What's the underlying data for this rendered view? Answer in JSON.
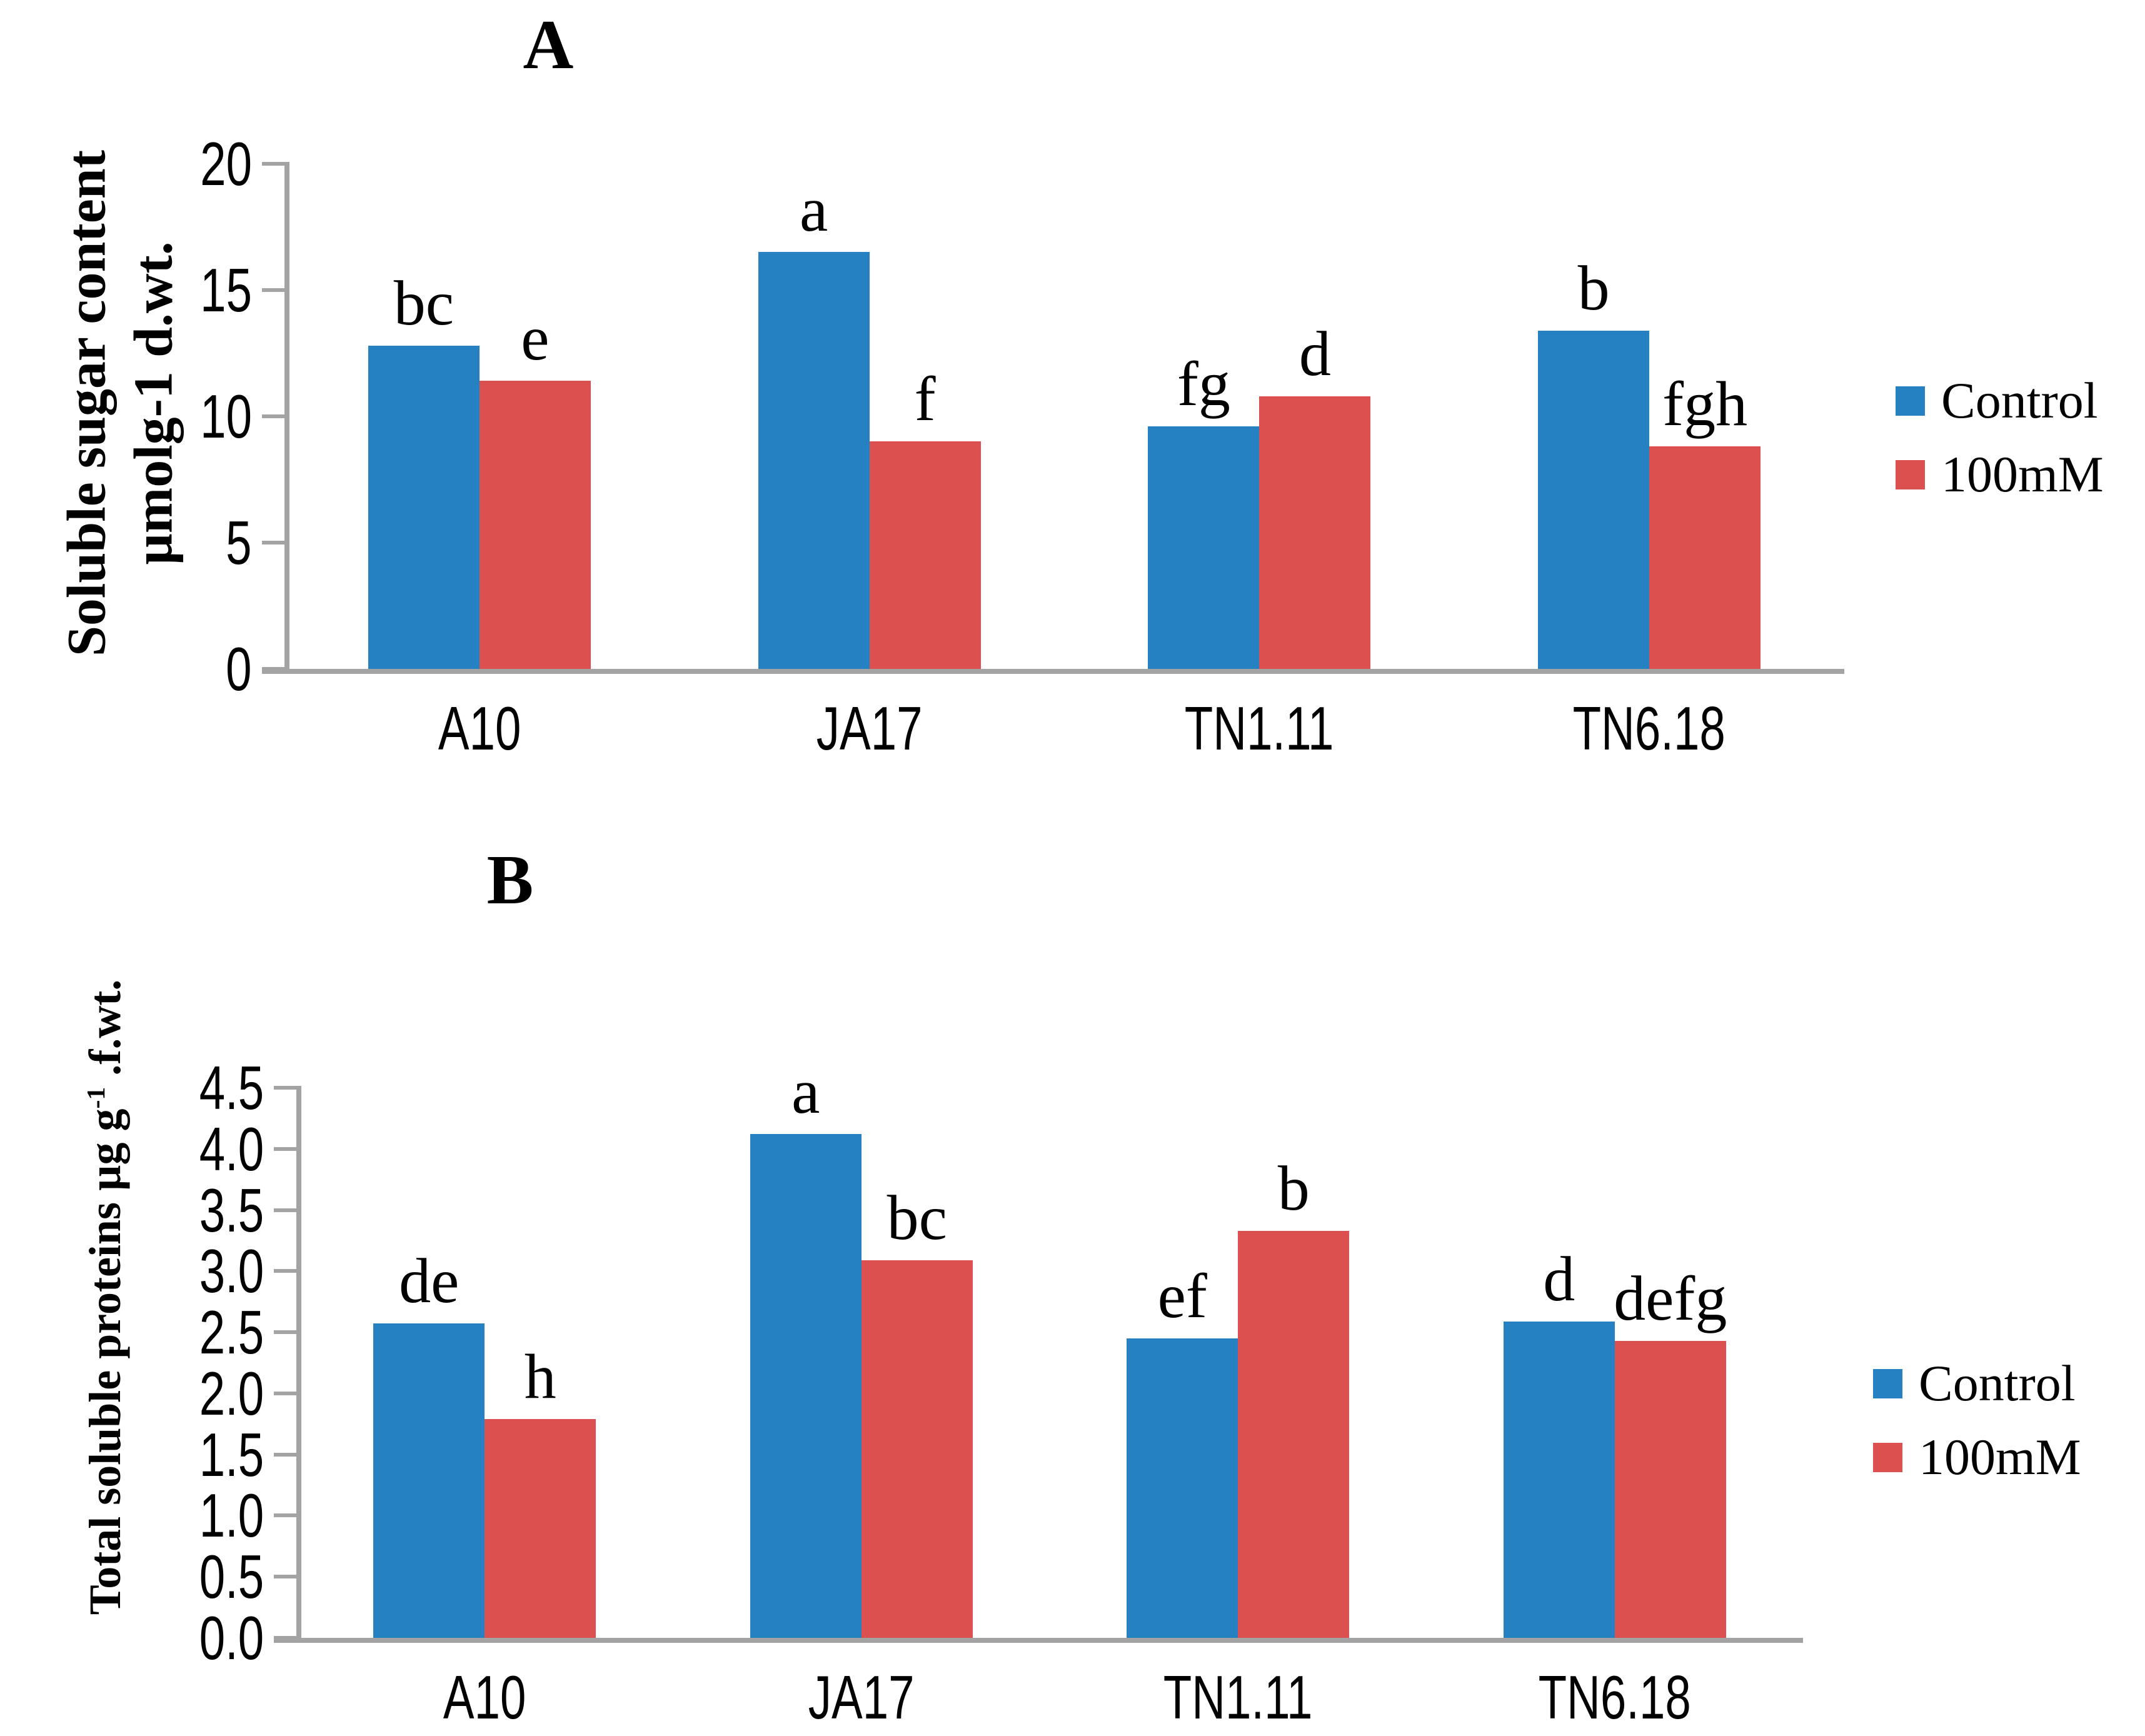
{
  "figure": {
    "panel_a_title": "A",
    "panel_b_title": "B",
    "background_color": "#ffffff",
    "axis_color": "#a3a3a3",
    "legend": {
      "control_label": "Control",
      "treatment_label": "100mM"
    },
    "colors": {
      "control": "#2581c1",
      "treatment": "#dc5150"
    }
  },
  "chart_data": [
    {
      "type": "bar",
      "title": "A",
      "ylabel_lines": [
        [
          {
            "t": "Soluble sugar content"
          }
        ],
        [
          {
            "t": "µmolg-1 d.wt."
          }
        ]
      ],
      "categories": [
        "A10",
        "JA17",
        "TN1.11",
        "TN6.18"
      ],
      "series": [
        {
          "name": "Control",
          "color": "#2581c1",
          "values": [
            12.8,
            16.5,
            9.6,
            13.4
          ],
          "sig": [
            "bc",
            "a",
            "fg",
            "b"
          ]
        },
        {
          "name": "100mM",
          "color": "#dc5150",
          "values": [
            11.4,
            9.0,
            10.8,
            8.8
          ],
          "sig": [
            "e",
            "f",
            "d",
            "fgh"
          ]
        }
      ],
      "ylim": [
        0,
        20
      ],
      "yticks": [
        {
          "v": 0,
          "label": "0"
        },
        {
          "v": 5,
          "label": "5"
        },
        {
          "v": 10,
          "label": "10"
        },
        {
          "v": 15,
          "label": "15"
        },
        {
          "v": 20,
          "label": "20"
        }
      ],
      "grid": false,
      "legend_position": "right"
    },
    {
      "type": "bar",
      "title": "B",
      "ylabel_lines": [
        [
          {
            "t": "Total soluble proteins  µg g"
          },
          {
            "t": "-1",
            "sup": true
          },
          {
            "t": " .f.wt."
          }
        ]
      ],
      "categories": [
        "A10",
        "JA17",
        "TN1.11",
        "TN6.18"
      ],
      "series": [
        {
          "name": "Control",
          "color": "#2581c1",
          "values": [
            2.57,
            4.12,
            2.45,
            2.59
          ],
          "sig": [
            "de",
            "a",
            "ef",
            "d"
          ]
        },
        {
          "name": "100mM",
          "color": "#dc5150",
          "values": [
            1.79,
            3.09,
            3.33,
            2.43
          ],
          "sig": [
            "h",
            "bc",
            "b",
            "defg"
          ]
        }
      ],
      "ylim": [
        0,
        4.5
      ],
      "yticks": [
        {
          "v": 0.0,
          "label": "0.0"
        },
        {
          "v": 0.5,
          "label": "0.5"
        },
        {
          "v": 1.0,
          "label": "1.0"
        },
        {
          "v": 1.5,
          "label": "1.5"
        },
        {
          "v": 2.0,
          "label": "2.0"
        },
        {
          "v": 2.5,
          "label": "2.5"
        },
        {
          "v": 3.0,
          "label": "3.0"
        },
        {
          "v": 3.5,
          "label": "3.5"
        },
        {
          "v": 4.0,
          "label": "4.0"
        },
        {
          "v": 4.5,
          "label": "4.5"
        }
      ],
      "grid": false,
      "legend_position": "right"
    }
  ]
}
